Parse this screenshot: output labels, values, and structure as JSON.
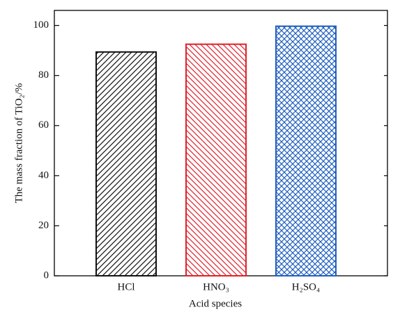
{
  "chart_data": {
    "type": "bar",
    "categories": [
      "HCl",
      "HNO₃",
      "H₂SO₄"
    ],
    "values": [
      89.4,
      92.5,
      99.7
    ],
    "colors": [
      "#111111",
      "#e0202a",
      "#1f5fbf"
    ],
    "hatches": [
      "/",
      "\\",
      "x"
    ],
    "xlabel": "Acid species",
    "ylabel": "The mass fraction of TiO₂/%",
    "ylim": [
      0,
      106
    ],
    "yticks": [
      0,
      20,
      40,
      60,
      80,
      100
    ]
  }
}
